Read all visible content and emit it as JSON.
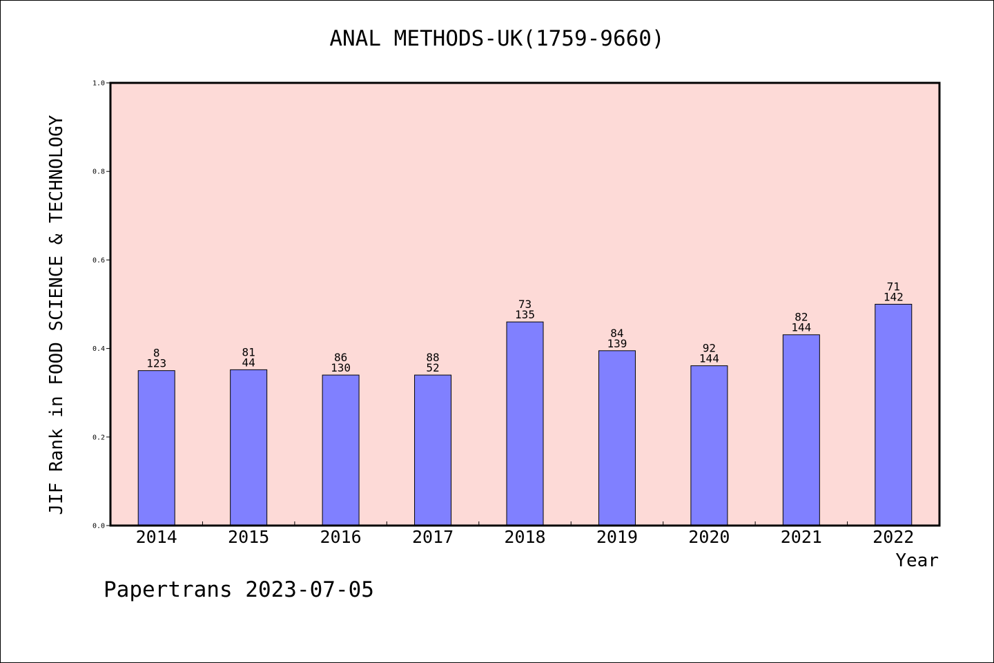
{
  "chart_data": {
    "type": "bar",
    "title": "ANAL METHODS-UK(1759-9660)",
    "xlabel": "Year",
    "ylabel": "JIF Rank in FOOD SCIENCE & TECHNOLOGY",
    "ylim": [
      0,
      1.0
    ],
    "yticks": [
      "0.0",
      "0.2",
      "0.4",
      "0.6",
      "0.8",
      "1.0"
    ],
    "categories": [
      "2014",
      "2015",
      "2016",
      "2017",
      "2018",
      "2019",
      "2020",
      "2021",
      "2022"
    ],
    "values": [
      0.35,
      0.352,
      0.34,
      0.34,
      0.46,
      0.395,
      0.361,
      0.431,
      0.5
    ],
    "rank": [
      "8",
      "81",
      "86",
      "88",
      "73",
      "84",
      "92",
      "82",
      "71"
    ],
    "total": [
      "123",
      "44",
      "130",
      "52",
      "135",
      "139",
      "144",
      "144",
      "142"
    ],
    "colors": {
      "plot_background": "#fddad7",
      "bar": "#8080ff"
    },
    "grid": false,
    "legend": "none"
  },
  "footer": "Papertrans 2023-07-05"
}
